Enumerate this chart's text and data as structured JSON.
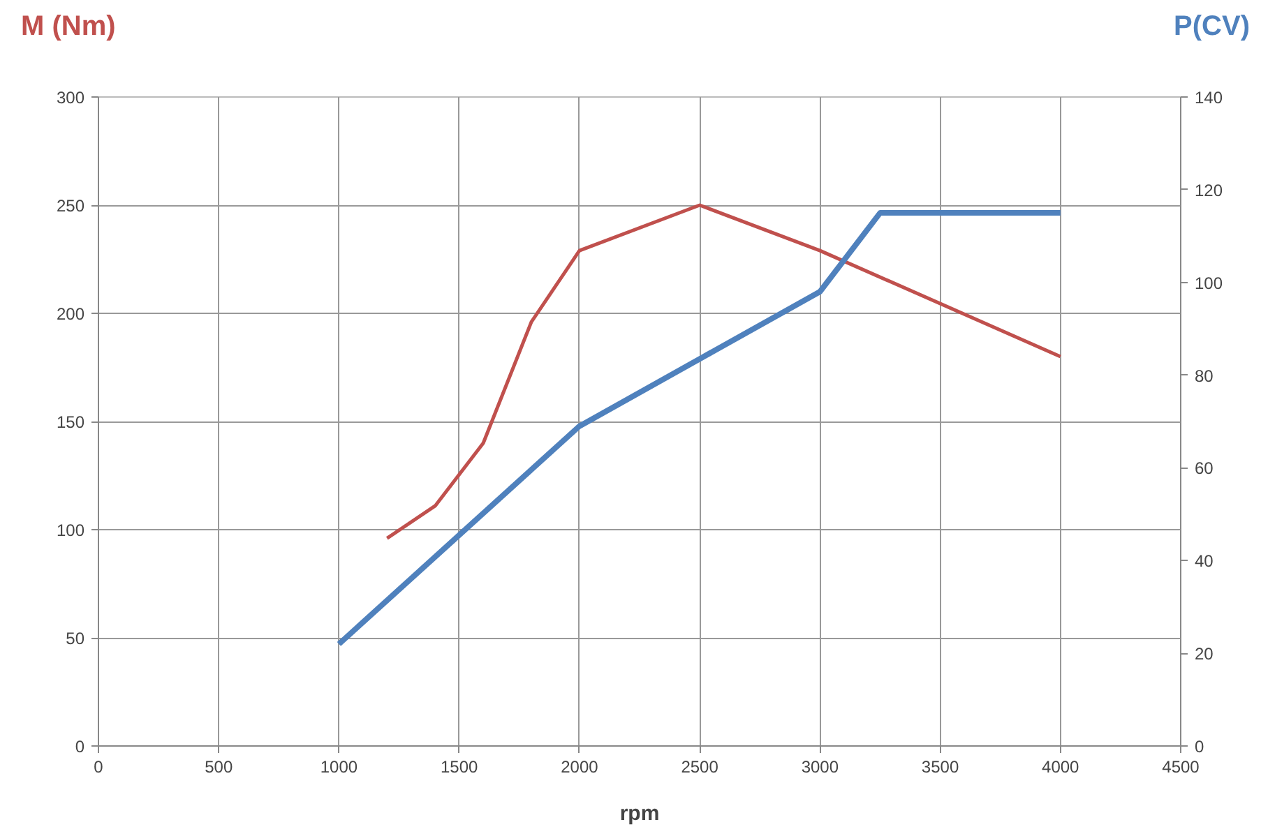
{
  "chart_data": {
    "type": "line",
    "xlabel": "rpm",
    "ylabel": "M (Nm)",
    "y2label": "P(CV)",
    "series": [
      {
        "color": "#c0504d",
        "x": [
          1200,
          1400,
          1600,
          1800,
          2000,
          2500,
          3000,
          4000
        ],
        "values": [
          96,
          111,
          140,
          196,
          229,
          250,
          229,
          180
        ]
      },
      {
        "color": "#4f81bd",
        "axis": "y2",
        "x": [
          1000,
          2000,
          3000,
          3250,
          4000
        ],
        "values": [
          22,
          69,
          98,
          115,
          115
        ]
      }
    ],
    "xlim": [
      0,
      4500
    ],
    "xticks": [
      0,
      500,
      1000,
      1500,
      2000,
      2500,
      3000,
      3500,
      4000,
      4500
    ],
    "ylim": [
      0,
      300
    ],
    "yticks": [
      0,
      50,
      100,
      150,
      200,
      250,
      300
    ],
    "y2lim": [
      0,
      140
    ],
    "y2ticks": [
      0,
      20,
      40,
      60,
      80,
      100,
      120,
      140
    ],
    "grid": true,
    "marker": "none",
    "line_style": "solid"
  }
}
